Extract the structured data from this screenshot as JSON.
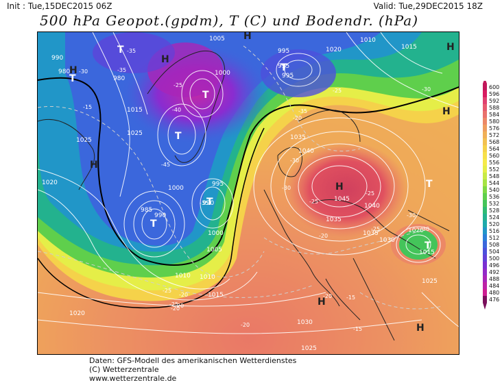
{
  "header": {
    "init_text": "Init : Tue,15DEC2015 06Z",
    "valid_text": "Valid: Tue,29DEC2015 18Z",
    "title": "500 hPa Geopot.(gpdm), T (C) und Bodendr. (hPa)"
  },
  "footer": {
    "line1": "Daten: GFS-Modell des amerikanischen Wetterdienstes",
    "line2": "(C) Wetterzentrale",
    "line3": "www.wetterzentrale.de"
  },
  "legend": {
    "levels": [
      "600",
      "596",
      "592",
      "588",
      "584",
      "580",
      "576",
      "572",
      "568",
      "564",
      "560",
      "556",
      "552",
      "548",
      "544",
      "540",
      "536",
      "532",
      "528",
      "524",
      "520",
      "516",
      "512",
      "508",
      "504",
      "500",
      "496",
      "492",
      "488",
      "484",
      "480",
      "476"
    ],
    "colors": [
      "#c2185b",
      "#d81b60",
      "#e0406f",
      "#e65a6e",
      "#e9716c",
      "#ec8866",
      "#ee9d5e",
      "#f0b057",
      "#f2c150",
      "#f5d24a",
      "#f7e04a",
      "#f5ea4a",
      "#e5ee48",
      "#c8ea46",
      "#a6e344",
      "#7fd944",
      "#5fcf4c",
      "#44c45a",
      "#2fbb72",
      "#23b28e",
      "#1ea9ab",
      "#2196c8",
      "#2a7fd8",
      "#3b67dc",
      "#4d50dc",
      "#6240d8",
      "#7a30d2",
      "#922ac8",
      "#a925b8",
      "#bd22a6",
      "#ce1e92",
      "#7a0f5c"
    ]
  },
  "map": {
    "pressure_labels": [
      "1005",
      "995",
      "1020",
      "1010",
      "1015",
      "990",
      "980",
      "980",
      "1000",
      "1015",
      "1025",
      "1025",
      "1020",
      "1010",
      "1040",
      "1045",
      "1040",
      "1035",
      "1035",
      "1035",
      "1030",
      "1020",
      "1015",
      "1025",
      "995",
      "990",
      "985",
      "1000",
      "1005",
      "1010",
      "1015",
      "1020",
      "1030",
      "1025",
      "1000",
      "995",
      "990",
      "995"
    ],
    "temp_labels": [
      "-35",
      "-35",
      "-30",
      "-40",
      "-45",
      "-25",
      "-35",
      "-15",
      "-20",
      "-25",
      "-30",
      "-25",
      "-30",
      "-25",
      "-30",
      "-25",
      "-20",
      "-20",
      "-25",
      "-20",
      "-20",
      "-15",
      "-15",
      "-20",
      "-30",
      "-35",
      "-25",
      "-20",
      "-30"
    ],
    "high_label": "H",
    "low_label": "T",
    "colors": {
      "coast": "#222222",
      "isobar": "#ffffff",
      "geo": "#000000"
    }
  }
}
